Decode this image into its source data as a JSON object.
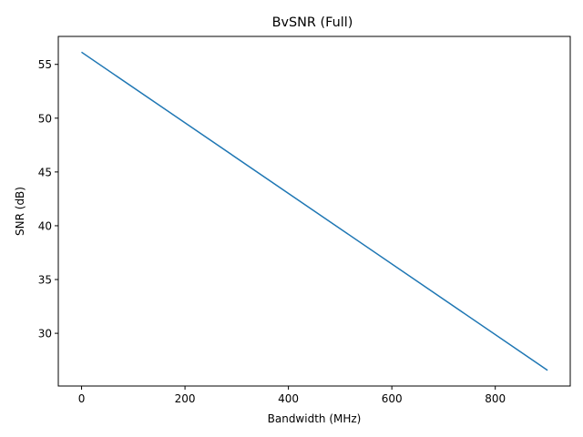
{
  "chart_data": {
    "type": "line",
    "title": "BvSNR (Full)",
    "xlabel": "Bandwidth (MHz)",
    "ylabel": "SNR (dB)",
    "xlim": [
      -45,
      945
    ],
    "ylim": [
      25.1,
      57.6
    ],
    "xticks": [
      0,
      200,
      400,
      600,
      800
    ],
    "xtick_labels": [
      "0",
      "200",
      "400",
      "600",
      "800"
    ],
    "yticks": [
      30,
      35,
      40,
      45,
      50,
      55
    ],
    "ytick_labels": [
      "30",
      "35",
      "40",
      "45",
      "50",
      "55"
    ],
    "grid": false,
    "legend": "none",
    "series": [
      {
        "color": "#1f77b4",
        "x": [
          1,
          900
        ],
        "y": [
          56.1,
          26.6
        ]
      }
    ]
  }
}
